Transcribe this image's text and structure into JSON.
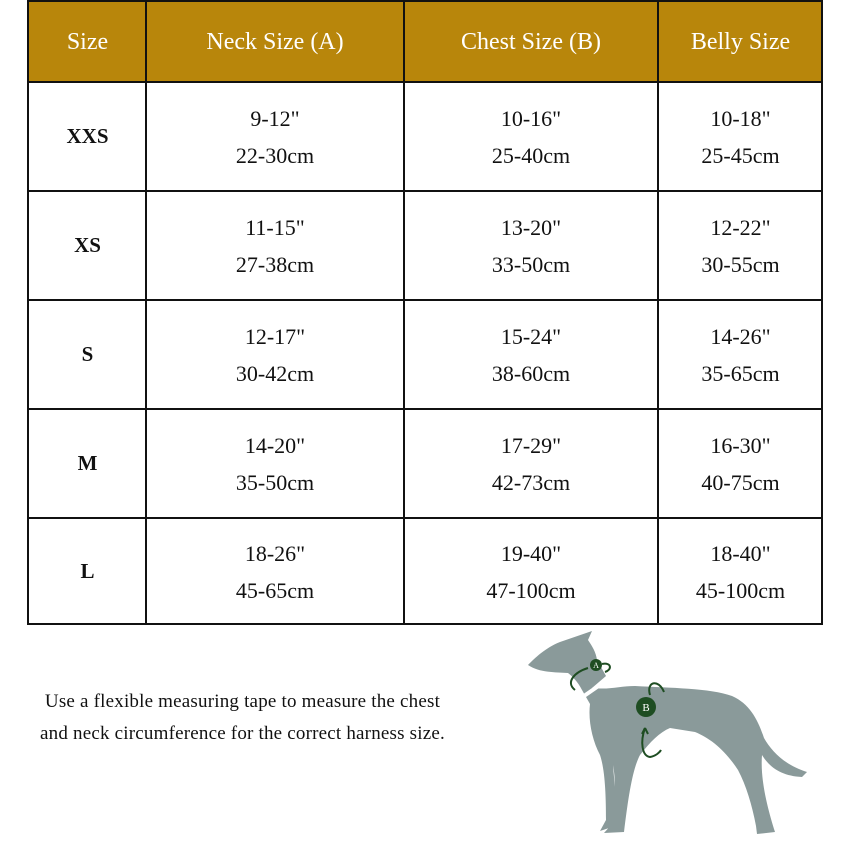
{
  "table": {
    "headers": [
      "Size",
      "Neck Size (A)",
      "Chest Size (B)",
      "Belly Size"
    ],
    "rows": [
      {
        "size": "XXS",
        "neck": [
          "9-12\"",
          "22-30cm"
        ],
        "chest": [
          "10-16\"",
          "25-40cm"
        ],
        "belly": [
          "10-18\"",
          "25-45cm"
        ]
      },
      {
        "size": "XS",
        "neck": [
          "11-15\"",
          "27-38cm"
        ],
        "chest": [
          "13-20\"",
          "33-50cm"
        ],
        "belly": [
          "12-22\"",
          "30-55cm"
        ]
      },
      {
        "size": "S",
        "neck": [
          "12-17\"",
          "30-42cm"
        ],
        "chest": [
          "15-24\"",
          "38-60cm"
        ],
        "belly": [
          "14-26\"",
          "35-65cm"
        ]
      },
      {
        "size": "M",
        "neck": [
          "14-20\"",
          "35-50cm"
        ],
        "chest": [
          "17-29\"",
          "42-73cm"
        ],
        "belly": [
          "16-30\"",
          "40-75cm"
        ]
      },
      {
        "size": "L",
        "neck": [
          "18-26\"",
          "45-65cm"
        ],
        "chest": [
          "19-40\"",
          "47-100cm"
        ],
        "belly": [
          "18-40\"",
          "45-100cm"
        ]
      }
    ]
  },
  "note": "Use a flexible measuring tape to measure the chest and neck circumference for the correct harness size.",
  "illustration": {
    "marker_a": "A",
    "marker_b": "B"
  },
  "colors": {
    "header_bg": "#b8860b",
    "dog": "#8a9a9a",
    "marker": "#1e4d22"
  }
}
